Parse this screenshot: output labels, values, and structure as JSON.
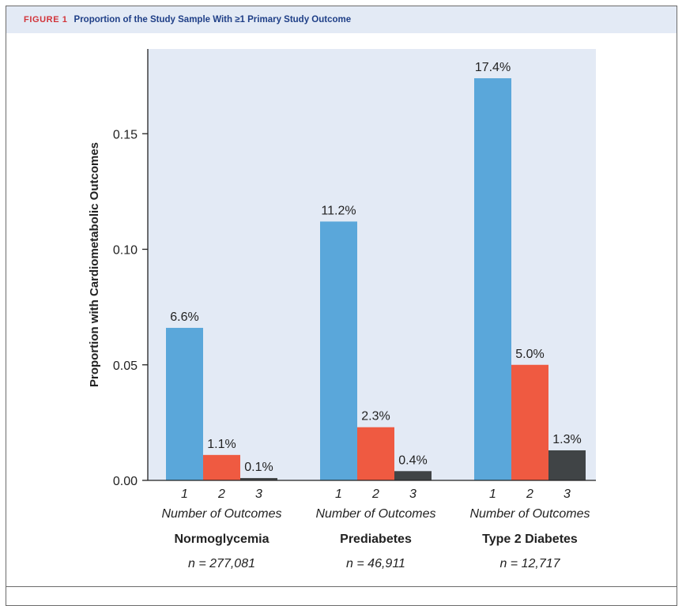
{
  "header": {
    "figure_label": "FIGURE 1",
    "title": "Proportion of the Study Sample With ≥1 Primary Study Outcome"
  },
  "chart_data": {
    "type": "bar",
    "ylabel": "Proportion with Cardiometabolic Outcomes",
    "ylim": [
      0,
      0.185
    ],
    "yticks": [
      0.0,
      0.05,
      0.1,
      0.15
    ],
    "ytick_labels": [
      "0.00",
      "0.05",
      "0.10",
      "0.15"
    ],
    "grid": false,
    "colors": {
      "1": "#5aa7da",
      "2": "#ef5a41",
      "3": "#404446"
    },
    "group_xlabel": "Number of Outcomes",
    "groups": [
      {
        "name": "Normoglycemia",
        "n_label": "n = 277,081",
        "bars": [
          {
            "category": "1",
            "value": 0.066,
            "label": "6.6%"
          },
          {
            "category": "2",
            "value": 0.011,
            "label": "1.1%"
          },
          {
            "category": "3",
            "value": 0.001,
            "label": "0.1%"
          }
        ]
      },
      {
        "name": "Prediabetes",
        "n_label": "n = 46,911",
        "bars": [
          {
            "category": "1",
            "value": 0.112,
            "label": "11.2%"
          },
          {
            "category": "2",
            "value": 0.023,
            "label": "2.3%"
          },
          {
            "category": "3",
            "value": 0.004,
            "label": "0.4%"
          }
        ]
      },
      {
        "name": "Type 2 Diabetes",
        "n_label": "n = 12,717",
        "bars": [
          {
            "category": "1",
            "value": 0.174,
            "label": "17.4%"
          },
          {
            "category": "2",
            "value": 0.05,
            "label": "5.0%"
          },
          {
            "category": "3",
            "value": 0.013,
            "label": "1.3%"
          }
        ]
      }
    ]
  }
}
